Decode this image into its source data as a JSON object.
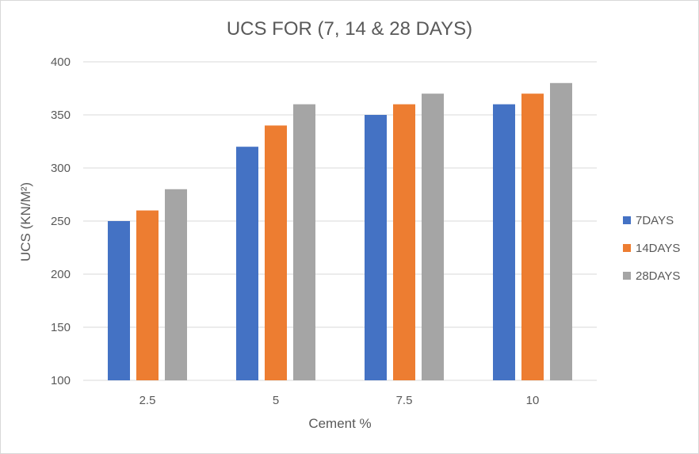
{
  "chart_data": {
    "type": "bar",
    "title": "UCS FOR (7, 14 & 28 DAYS)",
    "xlabel": "Cement %",
    "ylabel": "UCS (KN/M²)",
    "categories": [
      "2.5",
      "5",
      "7.5",
      "10"
    ],
    "series": [
      {
        "name": "7DAYS",
        "values": [
          250,
          320,
          350,
          360
        ],
        "color": "#4472C4"
      },
      {
        "name": "14DAYS",
        "values": [
          260,
          340,
          360,
          370
        ],
        "color": "#ED7D31"
      },
      {
        "name": "28DAYS",
        "values": [
          280,
          360,
          370,
          380
        ],
        "color": "#A5A5A5"
      }
    ],
    "ylim": [
      100,
      400
    ],
    "yticks": [
      100,
      150,
      200,
      250,
      300,
      350,
      400
    ],
    "grid": true,
    "legend": "right"
  }
}
